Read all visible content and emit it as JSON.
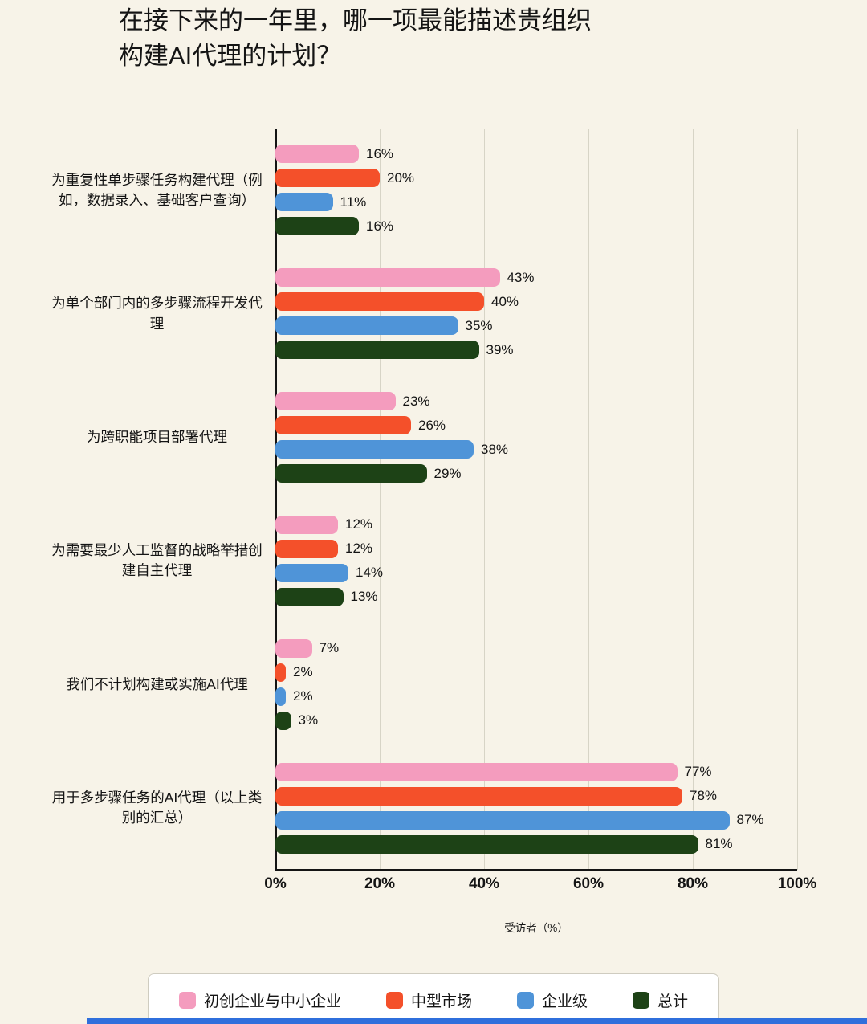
{
  "page": {
    "background": "#f7f3e8"
  },
  "chart_data": {
    "type": "bar",
    "orientation": "horizontal",
    "title": "在接下来的一年里，哪一项最能描述贵组织\n构建AI代理的计划？",
    "xlabel": "受访者（%）",
    "xlim": [
      0,
      100
    ],
    "x_ticks": [
      0,
      20,
      40,
      60,
      80,
      100
    ],
    "x_tick_labels": [
      "0%",
      "20%",
      "40%",
      "60%",
      "80%",
      "100%"
    ],
    "value_suffix": "%",
    "grid": true,
    "legend_position": "bottom",
    "categories": [
      "为重复性单步骤任务构建代理（例如，数据录入、基础客户查询）",
      "为单个部门内的多步骤流程开发代理",
      "为跨职能项目部署代理",
      "为需要最少人工监督的战略举措创建自主代理",
      "我们不计划构建或实施AI代理",
      "用于多步骤任务的AI代理（以上类别的汇总）"
    ],
    "series": [
      {
        "name": "初创企业与中小企业",
        "color": "#f49cbe",
        "values": [
          16,
          43,
          23,
          12,
          7,
          77
        ]
      },
      {
        "name": "中型市场",
        "color": "#f4502a",
        "values": [
          20,
          40,
          26,
          12,
          2,
          78
        ]
      },
      {
        "name": "企业级",
        "color": "#4f94d8",
        "values": [
          11,
          35,
          38,
          14,
          2,
          87
        ]
      },
      {
        "name": "总计",
        "color": "#1d4216",
        "values": [
          16,
          39,
          29,
          13,
          3,
          81
        ]
      }
    ],
    "axis_color": "#141414",
    "gridline_color": "#d7d4c6"
  }
}
